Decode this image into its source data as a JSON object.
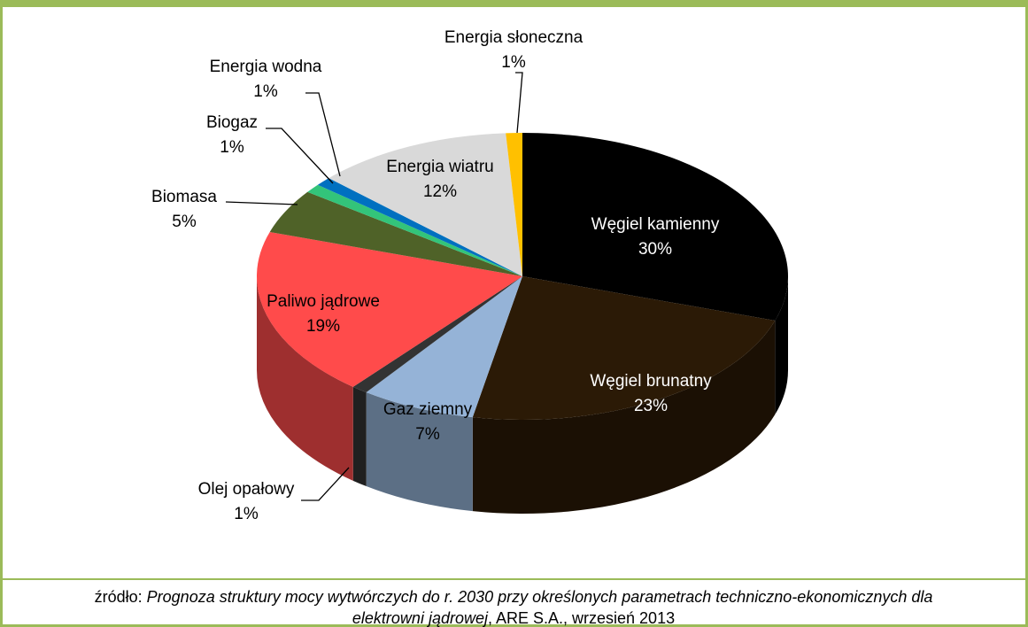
{
  "chart_data": {
    "type": "pie3d",
    "categories": [
      "Węgiel kamienny",
      "Węgiel brunatny",
      "Gaz ziemny",
      "Olej opałowy",
      "Paliwo jądrowe",
      "Biomasa",
      "Biogaz",
      "Energia wodna",
      "Energia wiatru",
      "Energia słoneczna"
    ],
    "values": [
      30,
      23,
      7,
      1,
      19,
      5,
      1,
      1,
      12,
      1
    ],
    "value_labels": [
      "30%",
      "23%",
      "7%",
      "1%",
      "19%",
      "5%",
      "1%",
      "1%",
      "12%",
      "1%"
    ],
    "colors": [
      "#000000",
      "#2b1a06",
      "#95b3d7",
      "#333333",
      "#ff4b4b",
      "#4f6228",
      "#33c47a",
      "#0070c0",
      "#d9d9d9",
      "#ffc000"
    ]
  },
  "footer": {
    "prefix": "źródło:",
    "title": "Prognoza struktury mocy wytwórczych do r. 2030 przy określonych parametrach techniczno-ekonomicznych dla elektrowni jądrowej",
    "suffix": ", ARE S.A., wrzesień 2013"
  }
}
